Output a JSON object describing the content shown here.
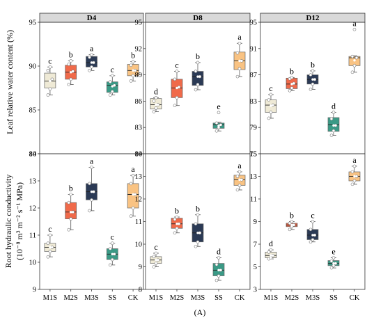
{
  "figure_label": "(A)",
  "y_axis_labels": {
    "top": "Leaf relative water content (%)",
    "bottom_line1": "Root hydraulic conductivity",
    "bottom_line2": "(10⁻⁸ m³ m⁻² s⁻¹ MPa)"
  },
  "colors": {
    "M1S": "#efead6",
    "M2S": "#f06a4a",
    "M3S": "#2b3a55",
    "SS": "#3a9a86",
    "CK": "#f9c383",
    "strip_bg": "#d9d9d9",
    "whisker": "#555555"
  },
  "chart_data": [
    {
      "type": "box",
      "title": "D4",
      "metric": "Leaf relative water content (%)",
      "categories": [
        "M1S",
        "M2S",
        "M3S",
        "SS",
        "CK"
      ],
      "ylim": [
        80,
        95
      ],
      "yticks": [
        80,
        85,
        90,
        95
      ],
      "boxes": [
        {
          "category": "M1S",
          "min": 86.7,
          "q1": 87.5,
          "median": 88.3,
          "q3": 89.2,
          "max": 89.9,
          "mean": 88.3,
          "letter": "c",
          "points": [
            86.7,
            87.4,
            88.5,
            89.5,
            89.9
          ]
        },
        {
          "category": "M2S",
          "min": 87.9,
          "q1": 88.5,
          "median": 89.3,
          "q3": 90.1,
          "max": 90.6,
          "mean": 89.3,
          "letter": "b",
          "points": [
            87.9,
            88.5,
            89.4,
            90.2,
            90.6
          ]
        },
        {
          "category": "M3S",
          "min": 89.5,
          "q1": 89.9,
          "median": 90.4,
          "q3": 91.1,
          "max": 91.3,
          "mean": 90.4,
          "letter": "a",
          "points": [
            89.5,
            89.9,
            90.4,
            91.0,
            91.3
          ]
        },
        {
          "category": "SS",
          "min": 86.7,
          "q1": 87.0,
          "median": 87.8,
          "q3": 88.2,
          "max": 88.9,
          "mean": 87.7,
          "letter": "c",
          "points": [
            86.7,
            87.1,
            87.8,
            88.2,
            88.9
          ]
        },
        {
          "category": "CK",
          "min": 88.3,
          "q1": 88.9,
          "median": 89.5,
          "q3": 90.2,
          "max": 90.5,
          "mean": 89.5,
          "letter": "b",
          "points": [
            88.3,
            88.9,
            89.5,
            90.1,
            90.5
          ]
        }
      ]
    },
    {
      "type": "box",
      "title": "D8",
      "metric": "Leaf relative water content (%)",
      "categories": [
        "M1S",
        "M2S",
        "M3S",
        "SS",
        "CK"
      ],
      "ylim": [
        80,
        95
      ],
      "yticks": [
        80,
        83,
        86,
        89,
        92,
        95
      ],
      "boxes": [
        {
          "category": "M1S",
          "min": 84.8,
          "q1": 85.1,
          "median": 85.6,
          "q3": 86.3,
          "max": 86.4,
          "mean": 85.6,
          "letter": "d",
          "points": [
            84.8,
            85.2,
            85.6,
            86.0,
            86.4
          ]
        },
        {
          "category": "M2S",
          "min": 85.5,
          "q1": 86.4,
          "median": 87.5,
          "q3": 88.5,
          "max": 89.4,
          "mean": 87.5,
          "letter": "c",
          "points": [
            85.5,
            86.4,
            87.6,
            88.5,
            89.4
          ]
        },
        {
          "category": "M3S",
          "min": 87.3,
          "q1": 87.8,
          "median": 88.8,
          "q3": 89.4,
          "max": 90.4,
          "mean": 88.8,
          "letter": "b",
          "points": [
            87.3,
            87.9,
            88.8,
            89.4,
            90.4
          ]
        },
        {
          "category": "SS",
          "min": 82.6,
          "q1": 82.9,
          "median": 83.3,
          "q3": 83.5,
          "max": 83.6,
          "mean": 83.2,
          "letter": "e",
          "points": [
            82.6,
            83.0,
            83.3,
            83.5,
            84.7
          ]
        },
        {
          "category": "CK",
          "min": 88.8,
          "q1": 89.6,
          "median": 90.6,
          "q3": 91.6,
          "max": 92.6,
          "mean": 90.6,
          "letter": "a",
          "points": [
            88.8,
            89.7,
            90.6,
            91.5,
            92.6
          ]
        }
      ]
    },
    {
      "type": "box",
      "title": "D12",
      "metric": "Leaf relative water content (%)",
      "categories": [
        "M1S",
        "M2S",
        "M3S",
        "SS",
        "CK"
      ],
      "ylim": [
        75,
        95
      ],
      "yticks": [
        75,
        79,
        83,
        87,
        91,
        95
      ],
      "boxes": [
        {
          "category": "M1S",
          "min": 80.4,
          "q1": 81.3,
          "median": 82.4,
          "q3": 83.2,
          "max": 84.0,
          "mean": 82.3,
          "letter": "c",
          "points": [
            80.4,
            81.3,
            82.4,
            83.2,
            84.0
          ]
        },
        {
          "category": "M2S",
          "min": 84.6,
          "q1": 84.9,
          "median": 85.6,
          "q3": 86.5,
          "max": 86.6,
          "mean": 85.6,
          "letter": "b",
          "points": [
            84.6,
            85.0,
            85.7,
            86.4,
            86.6
          ]
        },
        {
          "category": "M3S",
          "min": 84.8,
          "q1": 85.6,
          "median": 86.3,
          "q3": 87.0,
          "max": 87.6,
          "mean": 86.3,
          "letter": "b",
          "points": [
            84.8,
            85.6,
            86.3,
            87.0,
            87.6
          ]
        },
        {
          "category": "SS",
          "min": 77.8,
          "q1": 78.4,
          "median": 79.4,
          "q3": 80.5,
          "max": 81.3,
          "mean": 79.3,
          "letter": "d",
          "points": [
            77.8,
            78.5,
            79.3,
            80.3,
            81.3
          ]
        },
        {
          "category": "CK",
          "min": 87.4,
          "q1": 88.4,
          "median": 89.6,
          "q3": 89.8,
          "max": 89.9,
          "mean": 89.2,
          "letter": "a",
          "points": [
            87.4,
            88.4,
            89.6,
            89.8,
            93.9
          ]
        }
      ]
    },
    {
      "type": "box",
      "title": "",
      "metric": "Root hydraulic conductivity",
      "categories": [
        "M1S",
        "M2S",
        "M3S",
        "SS",
        "CK"
      ],
      "ylim": [
        9,
        14
      ],
      "yticks": [
        9,
        10,
        11,
        12,
        13,
        14
      ],
      "boxes": [
        {
          "category": "M1S",
          "min": 10.2,
          "q1": 10.4,
          "median": 10.55,
          "q3": 10.7,
          "max": 11.0,
          "mean": 10.55,
          "letter": "c",
          "points": [
            10.2,
            10.4,
            10.55,
            10.7,
            11.0
          ]
        },
        {
          "category": "M2S",
          "min": 11.2,
          "q1": 11.6,
          "median": 11.85,
          "q3": 12.2,
          "max": 12.5,
          "mean": 11.85,
          "letter": "b",
          "points": [
            11.2,
            11.6,
            11.85,
            12.2,
            12.5
          ]
        },
        {
          "category": "M3S",
          "min": 11.9,
          "q1": 12.3,
          "median": 12.6,
          "q3": 12.9,
          "max": 13.5,
          "mean": 12.6,
          "letter": "a",
          "points": [
            11.9,
            12.3,
            12.6,
            12.9,
            13.5
          ]
        },
        {
          "category": "SS",
          "min": 9.9,
          "q1": 10.1,
          "median": 10.3,
          "q3": 10.5,
          "max": 10.7,
          "mean": 10.3,
          "letter": "c",
          "points": [
            9.9,
            10.1,
            10.3,
            10.5,
            10.7
          ]
        },
        {
          "category": "CK",
          "min": 11.7,
          "q1": 12.0,
          "median": 12.5,
          "q3": 12.9,
          "max": 13.2,
          "mean": 12.5,
          "letter": "a",
          "points": [
            11.7,
            12.0,
            12.5,
            12.9,
            13.2
          ]
        }
      ]
    },
    {
      "type": "box",
      "title": "",
      "metric": "Root hydraulic conductivity",
      "categories": [
        "M1S",
        "M2S",
        "M3S",
        "SS",
        "CK"
      ],
      "ylim": [
        8,
        14
      ],
      "yticks": [
        8,
        9,
        10,
        11,
        12,
        13,
        14
      ],
      "boxes": [
        {
          "category": "M1S",
          "min": 9.0,
          "q1": 9.15,
          "median": 9.3,
          "q3": 9.45,
          "max": 9.6,
          "mean": 9.3,
          "letter": "c",
          "points": [
            9.0,
            9.15,
            9.3,
            9.45,
            9.6
          ]
        },
        {
          "category": "M2S",
          "min": 10.5,
          "q1": 10.7,
          "median": 10.9,
          "q3": 11.15,
          "max": 11.2,
          "mean": 10.9,
          "letter": "b",
          "points": [
            10.5,
            10.7,
            10.9,
            11.1,
            11.2
          ]
        },
        {
          "category": "M3S",
          "min": 9.9,
          "q1": 10.1,
          "median": 10.5,
          "q3": 10.9,
          "max": 11.3,
          "mean": 10.5,
          "letter": "b",
          "points": [
            9.9,
            10.1,
            10.5,
            10.9,
            11.3
          ]
        },
        {
          "category": "SS",
          "min": 8.4,
          "q1": 8.6,
          "median": 8.85,
          "q3": 9.15,
          "max": 9.4,
          "mean": 8.85,
          "letter": "d",
          "points": [
            8.4,
            8.6,
            8.85,
            9.1,
            9.4
          ]
        },
        {
          "category": "CK",
          "min": 12.4,
          "q1": 12.6,
          "median": 12.85,
          "q3": 13.05,
          "max": 13.2,
          "mean": 12.85,
          "letter": "a",
          "points": [
            12.4,
            12.6,
            12.85,
            13.0,
            13.2
          ]
        }
      ]
    },
    {
      "type": "box",
      "title": "",
      "metric": "Root hydraulic conductivity",
      "categories": [
        "M1S",
        "M2S",
        "M3S",
        "SS",
        "CK"
      ],
      "ylim": [
        3,
        15
      ],
      "yticks": [
        3,
        5,
        7,
        9,
        11,
        13,
        15
      ],
      "boxes": [
        {
          "category": "M1S",
          "min": 5.7,
          "q1": 5.8,
          "median": 6.0,
          "q3": 6.3,
          "max": 6.5,
          "mean": 6.0,
          "letter": "d",
          "points": [
            5.7,
            5.8,
            6.0,
            6.3,
            6.5
          ]
        },
        {
          "category": "M2S",
          "min": 8.3,
          "q1": 8.55,
          "median": 8.7,
          "q3": 8.85,
          "max": 9.0,
          "mean": 8.7,
          "letter": "b",
          "points": [
            8.3,
            8.55,
            8.7,
            8.85,
            9.0
          ]
        },
        {
          "category": "M3S",
          "min": 7.2,
          "q1": 7.4,
          "median": 7.8,
          "q3": 8.3,
          "max": 9.0,
          "mean": 7.8,
          "letter": "c",
          "points": [
            7.2,
            7.4,
            7.8,
            8.3,
            9.0
          ]
        },
        {
          "category": "SS",
          "min": 4.9,
          "q1": 5.1,
          "median": 5.3,
          "q3": 5.55,
          "max": 5.8,
          "mean": 5.3,
          "letter": "e",
          "points": [
            4.9,
            5.1,
            5.3,
            5.5,
            5.8
          ]
        },
        {
          "category": "CK",
          "min": 12.3,
          "q1": 12.6,
          "median": 13.0,
          "q3": 13.4,
          "max": 13.9,
          "mean": 13.0,
          "letter": "a",
          "points": [
            12.3,
            12.6,
            13.0,
            13.4,
            13.9
          ]
        }
      ]
    }
  ]
}
